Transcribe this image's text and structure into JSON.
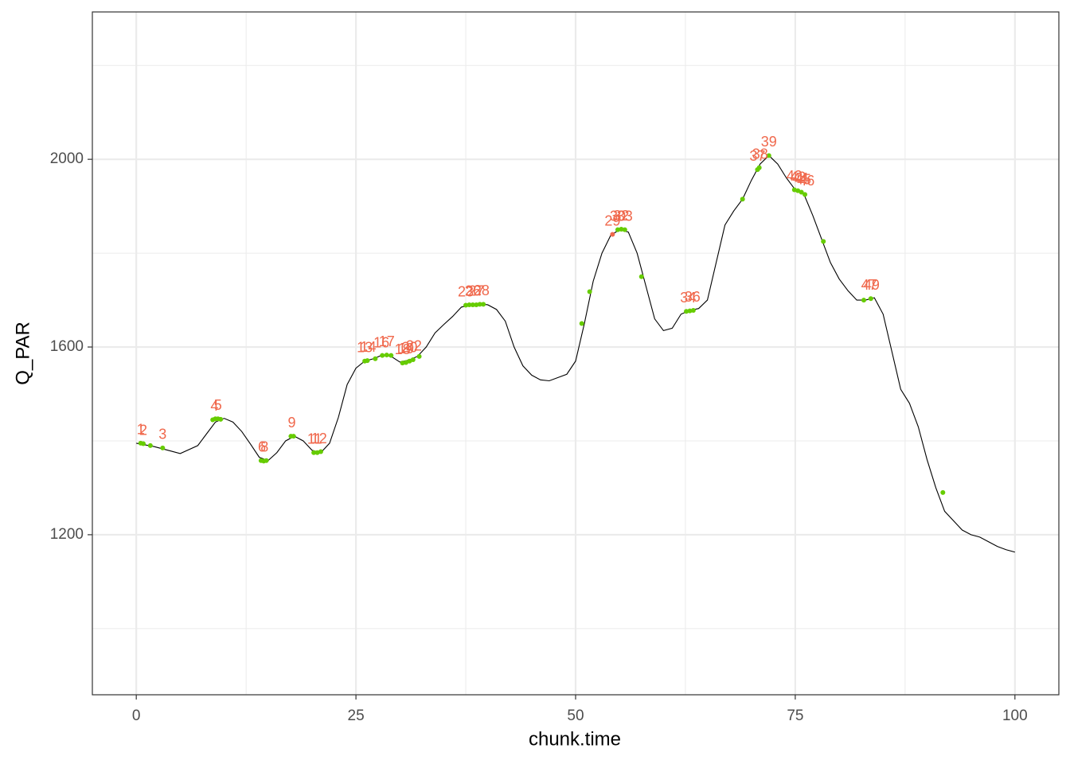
{
  "chart_data": {
    "type": "line",
    "x_label": "chunk.time",
    "y_label": "Q_PAR",
    "xlim": [
      -5,
      105
    ],
    "ylim": [
      859,
      2314
    ],
    "xticks": [
      0,
      25,
      50,
      75,
      100
    ],
    "yticks": [
      1200,
      1600,
      2000
    ],
    "grid": true,
    "line": {
      "color": "#000000",
      "x": [
        0,
        2,
        4,
        5,
        7,
        8,
        9,
        10,
        11,
        12,
        13,
        14,
        15,
        16,
        17,
        18,
        19,
        20,
        21,
        22,
        23,
        24,
        25,
        26,
        27,
        28,
        29,
        30,
        31,
        32,
        33,
        34,
        35,
        36,
        37,
        38,
        39,
        40,
        41,
        42,
        43,
        44,
        45,
        46,
        47,
        48,
        49,
        50,
        51,
        52,
        53,
        54,
        55,
        56,
        57,
        58,
        59,
        60,
        61,
        62,
        63,
        64,
        65,
        66,
        67,
        68,
        69,
        70,
        71,
        72,
        73,
        74,
        75,
        76,
        77,
        78,
        79,
        80,
        81,
        82,
        83,
        84,
        85,
        86,
        87,
        88,
        89,
        90,
        91,
        92,
        93,
        94,
        95,
        96,
        97,
        98,
        99,
        100
      ],
      "y": [
        1395,
        1388,
        1378,
        1373,
        1390,
        1415,
        1440,
        1448,
        1440,
        1420,
        1393,
        1365,
        1358,
        1375,
        1400,
        1410,
        1400,
        1380,
        1375,
        1395,
        1450,
        1520,
        1555,
        1570,
        1575,
        1583,
        1580,
        1568,
        1572,
        1580,
        1600,
        1630,
        1648,
        1665,
        1685,
        1690,
        1692,
        1690,
        1680,
        1655,
        1600,
        1560,
        1540,
        1530,
        1528,
        1535,
        1542,
        1570,
        1650,
        1740,
        1800,
        1838,
        1850,
        1845,
        1800,
        1730,
        1660,
        1635,
        1640,
        1670,
        1678,
        1682,
        1700,
        1780,
        1860,
        1890,
        1915,
        1955,
        1990,
        2008,
        1990,
        1960,
        1935,
        1925,
        1880,
        1830,
        1780,
        1745,
        1720,
        1700,
        1700,
        1705,
        1670,
        1590,
        1510,
        1480,
        1430,
        1360,
        1300,
        1250,
        1230,
        1210,
        1200,
        1195,
        1185,
        1175,
        1168,
        1163
      ]
    },
    "points": {
      "color": "#66cc00",
      "x": [
        0.5,
        0.8,
        1.6,
        3.0,
        8.7,
        9.0,
        9.3,
        9.6,
        14.2,
        14.5,
        14.8,
        17.6,
        17.9,
        20.2,
        20.6,
        21.0,
        26.0,
        26.3,
        27.2,
        28.0,
        28.5,
        29.0,
        30.3,
        30.7,
        31.1,
        31.5,
        32.2,
        37.5,
        37.9,
        38.3,
        38.7,
        39.1,
        39.5,
        50.7,
        51.6,
        54.8,
        55.2,
        55.6,
        57.5,
        62.6,
        63.0,
        63.4,
        69.0,
        70.7,
        70.9,
        72.0,
        74.9,
        75.3,
        75.7,
        76.1,
        78.2,
        82.8,
        83.6,
        91.8
      ],
      "y": [
        1395,
        1394,
        1390,
        1385,
        1445,
        1447,
        1447,
        1446,
        1358,
        1357,
        1358,
        1410,
        1410,
        1375,
        1375,
        1377,
        1570,
        1571,
        1575,
        1582,
        1583,
        1582,
        1566,
        1567,
        1570,
        1573,
        1580,
        1689,
        1690,
        1690,
        1690,
        1691,
        1691,
        1650,
        1718,
        1850,
        1851,
        1850,
        1750,
        1676,
        1677,
        1678,
        1915,
        1978,
        1982,
        2008,
        1935,
        1933,
        1930,
        1925,
        1825,
        1700,
        1703,
        1290
      ]
    },
    "red_points": {
      "color": "#f0684c",
      "x": [
        54.2
      ],
      "y": [
        1840
      ]
    },
    "labels": {
      "color": "#f0684c",
      "text": [
        "1",
        "2",
        "3",
        "4",
        "5",
        "6",
        "8",
        "9",
        "11",
        "12",
        "13",
        "14",
        "16",
        "17",
        "18",
        "19",
        "20",
        "22",
        "23",
        "26",
        "27",
        "28",
        "29",
        "30",
        "32",
        "33",
        "34",
        "36",
        "37",
        "38",
        "39",
        "40",
        "43",
        "44",
        "45",
        "46",
        "47",
        "49"
      ],
      "x": [
        0.5,
        0.8,
        3.0,
        8.9,
        9.3,
        14.3,
        14.6,
        17.7,
        20.3,
        20.8,
        26.0,
        26.4,
        27.9,
        28.5,
        30.3,
        30.7,
        31.1,
        31.6,
        37.5,
        38.3,
        38.7,
        39.3,
        54.2,
        54.8,
        55.2,
        55.6,
        62.8,
        63.3,
        70.7,
        71.0,
        72.0,
        74.9,
        75.3,
        75.6,
        75.9,
        76.3,
        83.4,
        83.7
      ],
      "y": [
        1395,
        1394,
        1385,
        1445,
        1447,
        1358,
        1358,
        1410,
        1375,
        1376,
        1570,
        1571,
        1580,
        1583,
        1566,
        1567,
        1570,
        1573,
        1689,
        1690,
        1690,
        1691,
        1840,
        1850,
        1851,
        1850,
        1676,
        1678,
        1978,
        1982,
        2008,
        1935,
        1933,
        1930,
        1928,
        1925,
        1703,
        1703
      ]
    }
  }
}
